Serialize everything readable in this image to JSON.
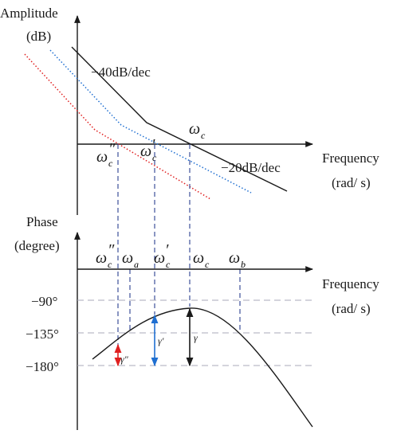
{
  "amplitude": {
    "axis_label_line1": "Amplitude",
    "axis_label_line2": "(dB)",
    "x_label_line1": "Frequency",
    "x_label_line2": "(rad/ s)",
    "slope_upper": "−40dB/dec",
    "slope_lower": "−20dB/dec",
    "omega_symbol": "ω",
    "label_wc_sub": "c",
    "label_wc_dprime": "″",
    "label_wc_prime": "′"
  },
  "phase": {
    "axis_label_line1": "Phase",
    "axis_label_line2": "(degree)",
    "x_label_line1": "Frequency",
    "x_label_line2": "(rad/ s)",
    "ticks": [
      "−90°",
      "−135°",
      "−180°"
    ],
    "freq_sub_c": "c",
    "freq_sub_a": "a",
    "freq_sub_b": "b",
    "dprime": "″",
    "prime": "′",
    "gamma": "γ",
    "gamma_dprime": "γ″",
    "gamma_prime": "γ′"
  },
  "colors": {
    "axis": "#1a1a1a",
    "curve_black": "#1a1a1a",
    "curve_blue": "#1f6fd1",
    "curve_red": "#e02020",
    "guide_dash": "#2a3f8f",
    "grid_dash": "#a8a8b8"
  }
}
